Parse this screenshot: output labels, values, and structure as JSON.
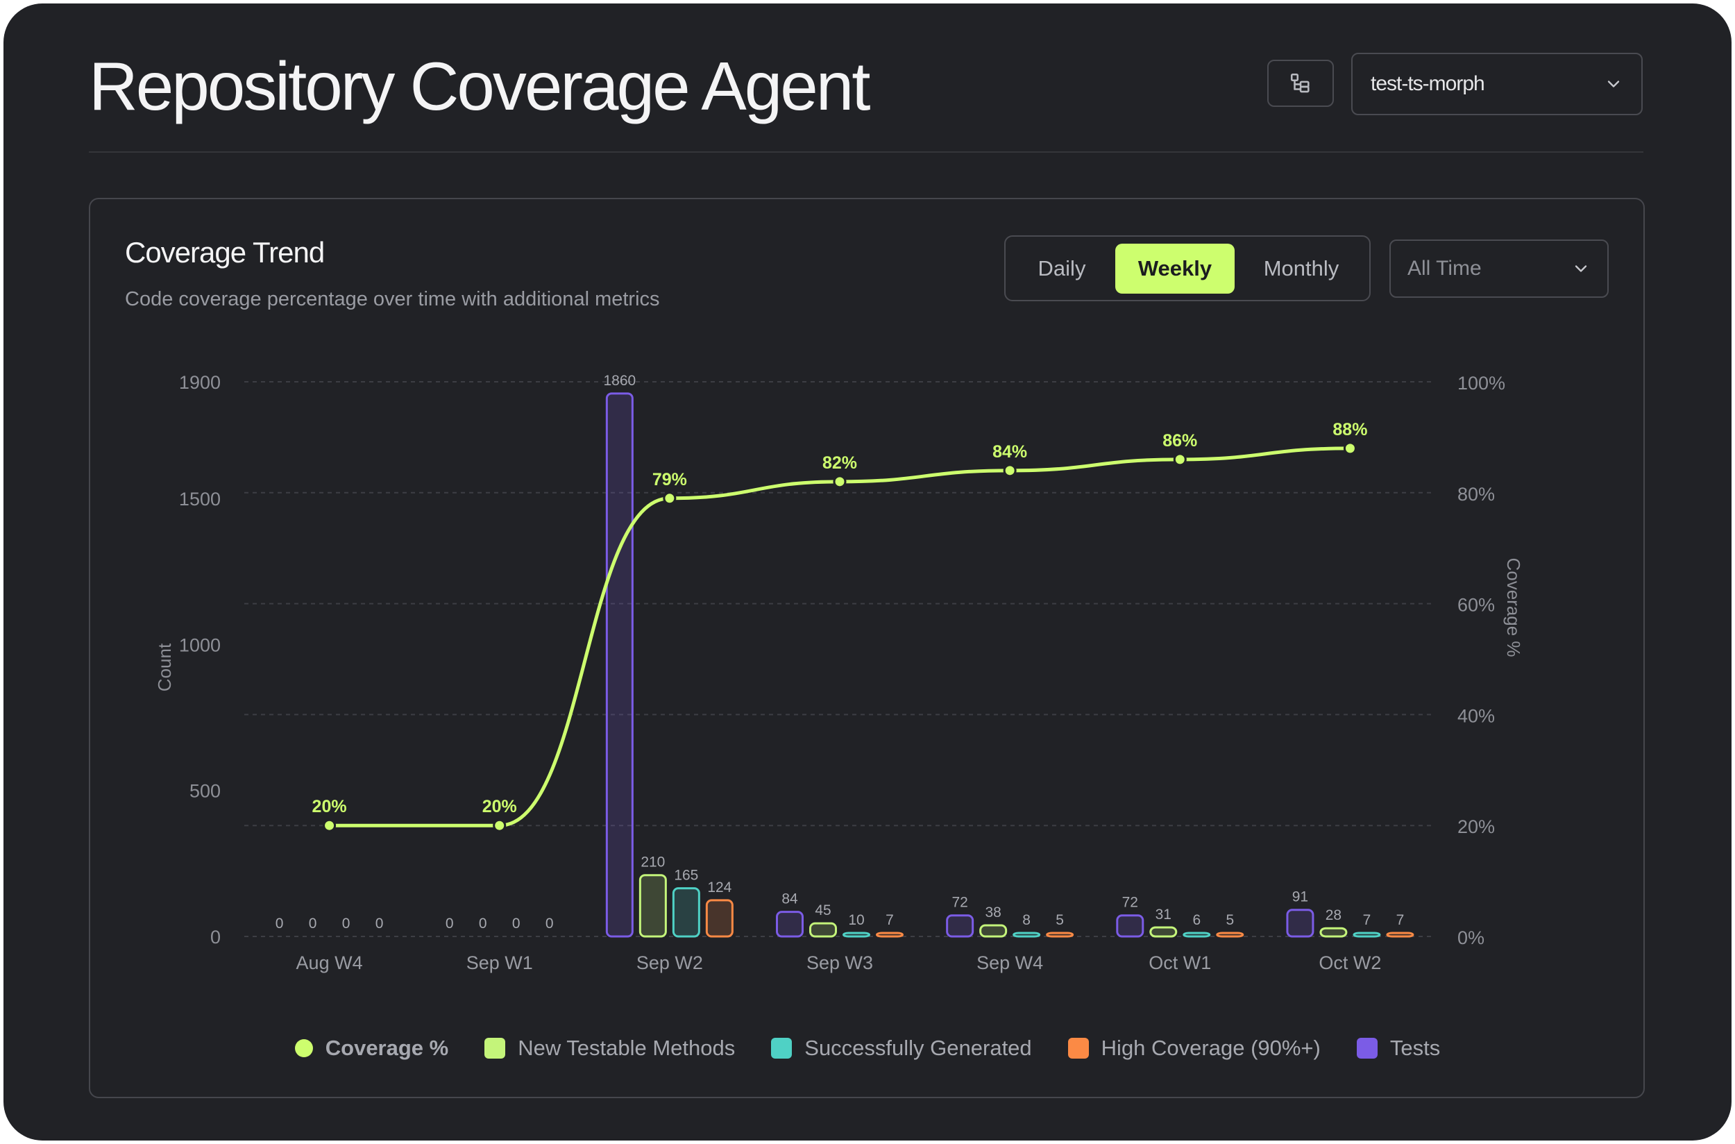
{
  "header": {
    "title": "Repository Coverage Agent",
    "repo_select": {
      "value": "test-ts-morph",
      "icon": "chevron-down-icon"
    },
    "tree_button": {
      "icon": "tree-structure-icon"
    }
  },
  "card": {
    "title": "Coverage Trend",
    "subtitle": "Code coverage percentage over time with additional metrics",
    "period_tabs": [
      {
        "label": "Daily",
        "active": false
      },
      {
        "label": "Weekly",
        "active": true
      },
      {
        "label": "Monthly",
        "active": false
      }
    ],
    "range_select": {
      "value": "All Time",
      "icon": "chevron-down-icon"
    }
  },
  "colors": {
    "coverage": "#cdfe6e",
    "new_testable": "#c4f47a",
    "generated": "#4fd1c5",
    "high_coverage": "#fb8a45",
    "tests": "#7b5ce6"
  },
  "chart_data": {
    "type": "bar",
    "categories": [
      "Aug W4",
      "Sep W1",
      "Sep W2",
      "Sep W3",
      "Sep W4",
      "Oct W1",
      "Oct W2"
    ],
    "series": [
      {
        "name": "Tests",
        "key": "tests",
        "axis": "left",
        "values": [
          0,
          0,
          1860,
          84,
          72,
          72,
          91
        ]
      },
      {
        "name": "New Testable Methods",
        "key": "new_testable",
        "axis": "left",
        "values": [
          0,
          0,
          210,
          45,
          38,
          31,
          28
        ]
      },
      {
        "name": "Successfully Generated",
        "key": "generated",
        "axis": "left",
        "values": [
          0,
          0,
          165,
          10,
          8,
          6,
          7
        ]
      },
      {
        "name": "High Coverage (90%+)",
        "key": "high_coverage",
        "axis": "left",
        "values": [
          0,
          0,
          124,
          7,
          5,
          5,
          7
        ]
      },
      {
        "name": "Coverage %",
        "key": "coverage",
        "axis": "right",
        "type": "line",
        "values": [
          20,
          20,
          79,
          82,
          84,
          86,
          88
        ]
      }
    ],
    "left_axis": {
      "label": "Count",
      "ylim": [
        0,
        1900
      ],
      "ticks": [
        0,
        500,
        1000,
        1500,
        1900
      ]
    },
    "right_axis": {
      "label": "Coverage %",
      "ylim": [
        0,
        100
      ],
      "ticks": [
        "0%",
        "20%",
        "40%",
        "60%",
        "80%",
        "100%"
      ]
    },
    "grid": true,
    "legend": {
      "position": "bottom",
      "entries": [
        "Coverage %",
        "New Testable Methods",
        "Successfully Generated",
        "High Coverage (90%+)",
        "Tests"
      ]
    }
  }
}
